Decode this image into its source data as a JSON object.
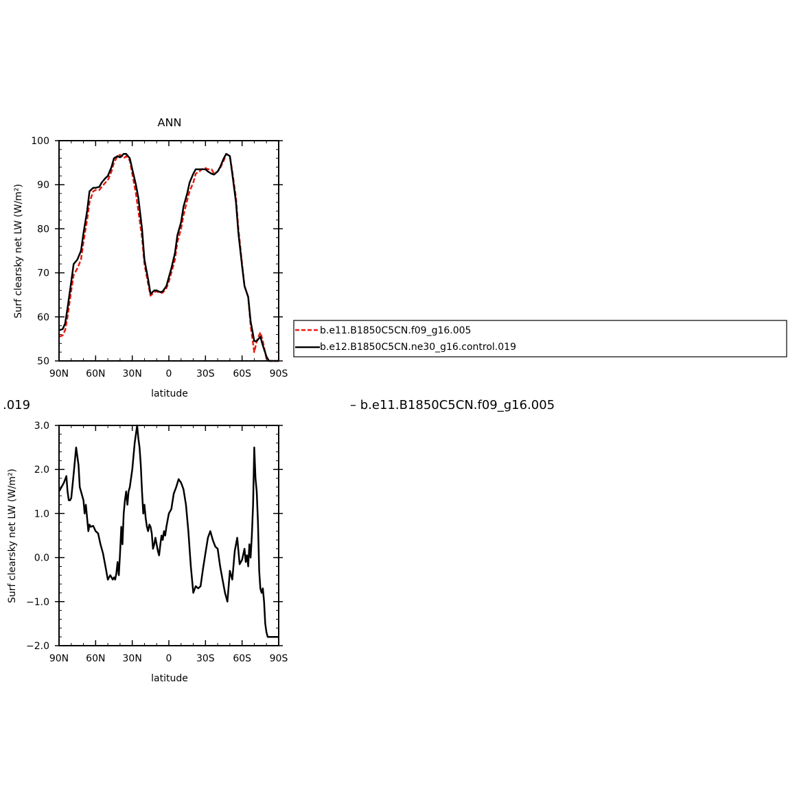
{
  "title": "ANN",
  "diff_label_left": ".019",
  "diff_label_right": "– b.e11.B1850C5CN.f09_g16.005",
  "chart_data": [
    {
      "type": "line",
      "title": "ANN",
      "xlabel": "latitude",
      "ylabel": "Surf clearsky net LW (W/m²)",
      "xlim": [
        90,
        -90
      ],
      "ylim": [
        50,
        100
      ],
      "xticks": [
        90,
        60,
        30,
        0,
        -30,
        -60,
        -90
      ],
      "xtick_labels": [
        "90N",
        "60N",
        "30N",
        "0",
        "30S",
        "60S",
        "90S"
      ],
      "yticks": [
        50,
        60,
        70,
        80,
        90,
        100
      ],
      "ytick_labels": [
        "50",
        "60",
        "70",
        "80",
        "90",
        "100"
      ],
      "legend_placement": "right, outside",
      "series": [
        {
          "name": "b.e11.B1850C5CN.f09_g16.005",
          "color": "#e8190f",
          "dash": true,
          "x": [
            90,
            87,
            85,
            83,
            80,
            78,
            75,
            72,
            70,
            67,
            65,
            62,
            60,
            57,
            55,
            52,
            50,
            47,
            45,
            42,
            40,
            37,
            35,
            32,
            30,
            27,
            25,
            22,
            20,
            17,
            15,
            12,
            10,
            7,
            5,
            2,
            0,
            -2,
            -5,
            -7,
            -10,
            -12,
            -15,
            -17,
            -20,
            -22,
            -25,
            -27,
            -30,
            -32,
            -35,
            -37,
            -40,
            -42,
            -45,
            -47,
            -50,
            -52,
            -55,
            -57,
            -60,
            -62,
            -65,
            -67,
            -70,
            -72,
            -75,
            -77,
            -80,
            -82,
            -85,
            -87,
            -90
          ],
          "y": [
            55.5,
            55.8,
            57,
            60,
            66,
            69.5,
            71,
            73,
            77,
            82,
            86,
            88.5,
            88.8,
            88.8,
            89.5,
            90.5,
            91,
            93,
            95,
            96.5,
            96.8,
            96,
            96.5,
            95.5,
            92.5,
            88,
            84,
            78,
            72,
            67.5,
            64.8,
            65.6,
            65.8,
            65.4,
            65.5,
            66.5,
            68,
            70,
            73,
            77,
            80,
            83,
            86.5,
            88.5,
            90.5,
            92.5,
            93,
            93.5,
            93.8,
            93.5,
            93.5,
            92.5,
            93,
            93.8,
            95.5,
            97,
            96.5,
            93,
            87,
            80,
            72,
            67,
            64.5,
            58,
            52,
            54.5,
            56.5,
            54.5,
            50.5,
            50,
            50,
            50,
            50
          ]
        },
        {
          "name": "b.e12.B1850C5CN.ne30_g16.control.019",
          "color": "#000000",
          "dash": false,
          "x": [
            90,
            87,
            85,
            83,
            80,
            78,
            75,
            72,
            70,
            67,
            65,
            62,
            60,
            57,
            55,
            52,
            50,
            47,
            45,
            42,
            40,
            37,
            35,
            32,
            30,
            27,
            25,
            22,
            20,
            17,
            15,
            12,
            10,
            7,
            5,
            2,
            0,
            -2,
            -5,
            -7,
            -10,
            -12,
            -15,
            -17,
            -20,
            -22,
            -25,
            -27,
            -30,
            -32,
            -35,
            -37,
            -40,
            -42,
            -45,
            -47,
            -50,
            -52,
            -55,
            -57,
            -60,
            -62,
            -65,
            -67,
            -70,
            -72,
            -75,
            -77,
            -80,
            -82,
            -85,
            -87,
            -90
          ],
          "y": [
            57,
            57.2,
            58.5,
            62,
            68,
            72,
            73,
            75,
            79,
            84,
            88.5,
            89.3,
            89.3,
            89.5,
            90.5,
            91.5,
            92,
            94,
            96,
            96.5,
            96.2,
            97,
            97,
            96,
            93.5,
            90,
            87,
            80,
            73,
            68.5,
            65.2,
            66,
            66,
            65.6,
            65.8,
            67,
            69,
            71,
            74.5,
            78.5,
            81.5,
            85,
            88,
            90.5,
            92.5,
            93.5,
            93.5,
            93.5,
            93.5,
            93,
            92.5,
            92.3,
            93,
            94,
            96,
            97,
            96.5,
            92.5,
            86,
            79,
            71.5,
            67,
            64.5,
            59,
            54.5,
            54.5,
            55.5,
            53.5,
            51,
            50,
            50,
            50,
            50
          ]
        }
      ]
    },
    {
      "type": "line",
      "title": "",
      "xlabel": "latitude",
      "ylabel": "Surf clearsky net LW (W/m²)",
      "xlim": [
        90,
        -90
      ],
      "ylim": [
        -2.0,
        3.0
      ],
      "xticks": [
        90,
        60,
        30,
        0,
        -30,
        -60,
        -90
      ],
      "xtick_labels": [
        "90N",
        "60N",
        "30N",
        "0",
        "30S",
        "60S",
        "90S"
      ],
      "yticks": [
        -2.0,
        -1.0,
        0.0,
        1.0,
        2.0,
        3.0
      ],
      "ytick_labels": [
        "−2.0",
        "−1.0",
        "0.0",
        "1.0",
        "2.0",
        "3.0"
      ],
      "series": [
        {
          "color": "#000000",
          "dash": false,
          "x": [
            90,
            88,
            86,
            84,
            83,
            82,
            81,
            80,
            78,
            76,
            74,
            73,
            72,
            70,
            69,
            68,
            67,
            66,
            65,
            64,
            62,
            60,
            58,
            56,
            54,
            52,
            50,
            48,
            46,
            45,
            44,
            43,
            42,
            41,
            40,
            39,
            38,
            37,
            36,
            35,
            34,
            33,
            32,
            30,
            28,
            27,
            26,
            25,
            24,
            23,
            22,
            21,
            20,
            19,
            18,
            17,
            16,
            15,
            14,
            13,
            12,
            11,
            10,
            9,
            8,
            7,
            6,
            5,
            4,
            3,
            2,
            0,
            -2,
            -4,
            -6,
            -8,
            -10,
            -12,
            -14,
            -16,
            -18,
            -20,
            -22,
            -24,
            -26,
            -28,
            -30,
            -32,
            -34,
            -36,
            -38,
            -40,
            -42,
            -44,
            -46,
            -48,
            -50,
            -52,
            -54,
            -56,
            -58,
            -60,
            -62,
            -63,
            -64,
            -65,
            -66,
            -67,
            -68,
            -69,
            -70,
            -71,
            -72,
            -73,
            -74,
            -75,
            -76,
            -77,
            -78,
            -79,
            -80,
            -81,
            -82,
            -83,
            -84,
            -85,
            -86,
            -87,
            -88,
            -89,
            -90
          ],
          "y": [
            1.5,
            1.6,
            1.7,
            1.85,
            1.5,
            1.3,
            1.3,
            1.35,
            1.9,
            2.5,
            2.1,
            1.6,
            1.5,
            1.3,
            1.0,
            1.2,
            0.9,
            0.6,
            0.75,
            0.7,
            0.72,
            0.6,
            0.55,
            0.3,
            0.1,
            -0.2,
            -0.5,
            -0.4,
            -0.5,
            -0.45,
            -0.5,
            -0.35,
            -0.1,
            -0.4,
            0.1,
            0.7,
            0.3,
            1.0,
            1.3,
            1.5,
            1.2,
            1.5,
            1.6,
            2.0,
            2.6,
            2.8,
            3.0,
            2.7,
            2.5,
            2.1,
            1.5,
            1.0,
            1.2,
            0.9,
            0.7,
            0.6,
            0.75,
            0.7,
            0.55,
            0.2,
            0.3,
            0.45,
            0.3,
            0.15,
            0.05,
            0.3,
            0.5,
            0.4,
            0.6,
            0.5,
            0.7,
            1.0,
            1.1,
            1.45,
            1.6,
            1.78,
            1.7,
            1.55,
            1.2,
            0.6,
            -0.2,
            -0.8,
            -0.65,
            -0.7,
            -0.65,
            -0.25,
            0.1,
            0.45,
            0.6,
            0.4,
            0.25,
            0.2,
            -0.2,
            -0.5,
            -0.8,
            -1.0,
            -0.3,
            -0.5,
            0.15,
            0.45,
            -0.15,
            -0.05,
            0.2,
            -0.1,
            0.05,
            -0.2,
            0.3,
            0.0,
            0.5,
            1.2,
            2.5,
            1.8,
            1.5,
            0.8,
            -0.3,
            -0.7,
            -0.8,
            -0.7,
            -1.0,
            -1.5,
            -1.7,
            -1.8,
            -1.8,
            -1.8,
            -1.8,
            -1.8,
            -1.8,
            -1.8,
            -1.8,
            -1.8,
            -1.8
          ]
        }
      ]
    }
  ]
}
